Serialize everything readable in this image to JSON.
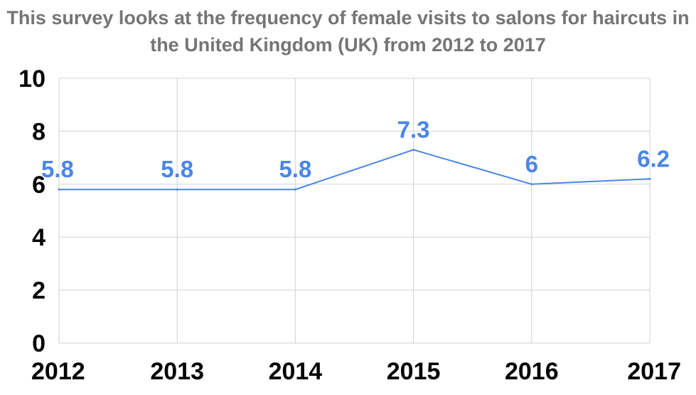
{
  "chart_data": {
    "type": "line",
    "title": "This survey looks at the frequency of female visits to salons for haircuts in the United Kingdom (UK) from 2012 to 2017",
    "xlabel": "",
    "ylabel": "",
    "categories": [
      "2012",
      "2013",
      "2014",
      "2015",
      "2016",
      "2017"
    ],
    "series": [
      {
        "values": [
          5.8,
          5.8,
          5.8,
          7.3,
          6,
          6.2
        ],
        "data_labels": [
          "5.8",
          "5.8",
          "5.8",
          "7.3",
          "6",
          "6.2"
        ],
        "color": "#4a86e8"
      }
    ],
    "ylim": [
      0,
      10
    ],
    "y_ticks": [
      "0",
      "2",
      "4",
      "6",
      "8",
      "10"
    ],
    "grid": true,
    "grid_color": "#d9d9d9",
    "title_color": "#757575",
    "legend": "none"
  }
}
